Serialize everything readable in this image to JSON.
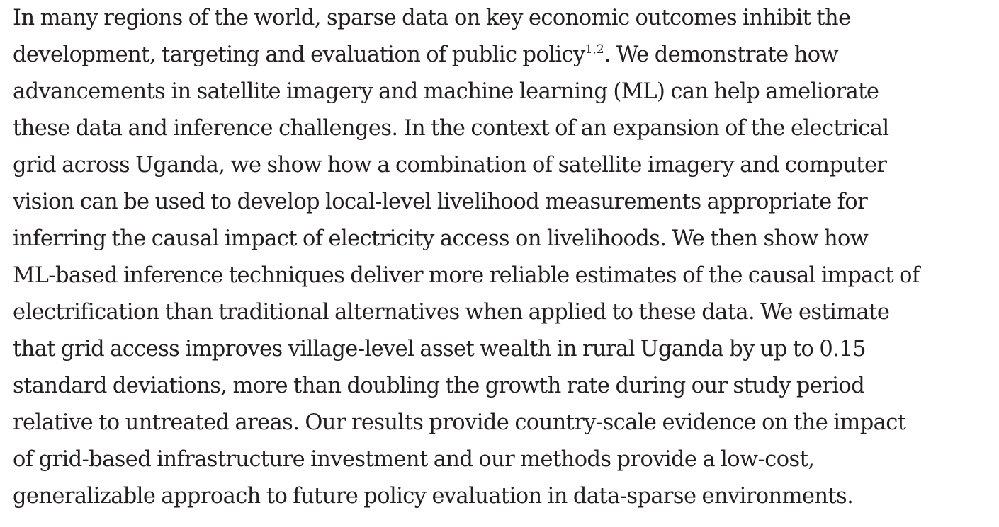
{
  "abstract": {
    "lines": [
      "In many regions of the world, sparse data on key economic outcomes inhibit the",
      "development, targeting and evaluation of public policy",
      ". We demonstrate how",
      "advancements in satellite imagery and machine learning (ML) can help ameliorate",
      "these data and inference challenges. In the context of an expansion of the electrical",
      "grid across Uganda, we show how a combination of satellite imagery and computer",
      "vision can be used to develop local-level livelihood measurements appropriate for",
      "inferring the causal impact of electricity access on livelihoods. We then show how",
      "ML-based inference techniques deliver more reliable estimates of the causal impact of",
      "electrification than traditional alternatives when applied to these data. We estimate",
      "that grid access improves village-level asset wealth in rural Uganda by up to 0.15",
      "standard deviations, more than doubling the growth rate during our study period",
      "relative to untreated areas. Our results provide country-scale evidence on the impact",
      "of grid-based infrastructure investment and our methods provide a low-cost,",
      "generalizable approach to future policy evaluation in data-sparse environments."
    ],
    "citation": "1,2"
  }
}
